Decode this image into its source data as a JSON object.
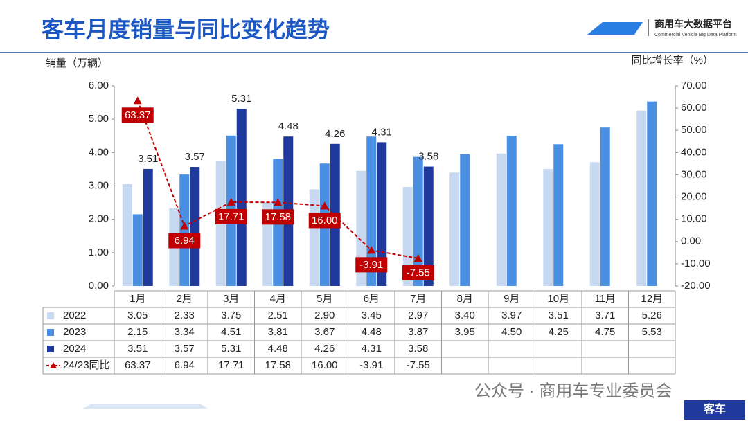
{
  "header": {
    "title": "客车月度销量与同比变化趋势",
    "logo_name": "商用车大数据平台",
    "logo_subtitle": "Commercial Vehicle Big Data Platform"
  },
  "chart_data": {
    "type": "bar",
    "y_label": "销量（万辆）",
    "y2_label": "同比增长率（%）",
    "categories": [
      "1月",
      "2月",
      "3月",
      "4月",
      "5月",
      "6月",
      "7月",
      "8月",
      "9月",
      "10月",
      "11月",
      "12月"
    ],
    "ylim": [
      0,
      6
    ],
    "yticks": [
      {
        "value": 0,
        "label": "0.00"
      },
      {
        "value": 1,
        "label": "1.00"
      },
      {
        "value": 2,
        "label": "2.00"
      },
      {
        "value": 3,
        "label": "3.00"
      },
      {
        "value": 4,
        "label": "4.00"
      },
      {
        "value": 5,
        "label": "5.00"
      },
      {
        "value": 6,
        "label": "6.00"
      }
    ],
    "y2lim": [
      -20,
      70
    ],
    "y2ticks": [
      {
        "value": -20,
        "label": "-20.00"
      },
      {
        "value": -10,
        "label": "-10.00"
      },
      {
        "value": 0,
        "label": "0.00"
      },
      {
        "value": 10,
        "label": "10.00"
      },
      {
        "value": 20,
        "label": "20.00"
      },
      {
        "value": 30,
        "label": "30.00"
      },
      {
        "value": 40,
        "label": "40.00"
      },
      {
        "value": 50,
        "label": "50.00"
      },
      {
        "value": 60,
        "label": "60.00"
      },
      {
        "value": 70,
        "label": "70.00"
      }
    ],
    "series": [
      {
        "name": "2022",
        "type": "bar",
        "color": "#c6d9f1",
        "values": [
          3.05,
          2.33,
          3.75,
          2.51,
          2.9,
          3.45,
          2.97,
          3.4,
          3.97,
          3.51,
          3.71,
          5.26
        ],
        "value_labels": [
          "3.05",
          "2.33",
          "3.75",
          "2.51",
          "2.90",
          "3.45",
          "2.97",
          "3.40",
          "3.97",
          "3.51",
          "3.71",
          "5.26"
        ]
      },
      {
        "name": "2023",
        "type": "bar",
        "color": "#4a8fe2",
        "values": [
          2.15,
          3.34,
          4.51,
          3.81,
          3.67,
          4.48,
          3.87,
          3.95,
          4.5,
          4.25,
          4.75,
          5.53
        ],
        "value_labels": [
          "2.15",
          "3.34",
          "4.51",
          "3.81",
          "3.67",
          "4.48",
          "3.87",
          "3.95",
          "4.50",
          "4.25",
          "4.75",
          "5.53"
        ]
      },
      {
        "name": "2024",
        "type": "bar",
        "color": "#1f3a9c",
        "show_labels": true,
        "values": [
          3.51,
          3.57,
          5.31,
          4.48,
          4.26,
          4.31,
          3.58,
          null,
          null,
          null,
          null,
          null
        ],
        "value_labels": [
          "3.51",
          "3.57",
          "5.31",
          "4.48",
          "4.26",
          "4.31",
          "3.58",
          null,
          null,
          null,
          null,
          null
        ]
      },
      {
        "name": "24/23同比",
        "type": "line",
        "axis": "y2",
        "color": "#c00000",
        "values": [
          63.37,
          6.94,
          17.71,
          17.58,
          16,
          -3.91,
          -7.55,
          null,
          null,
          null,
          null,
          null
        ],
        "value_labels": [
          "63.37",
          "6.94",
          "17.71",
          "17.58",
          "16.00",
          "-3.91",
          "-7.55",
          null,
          null,
          null,
          null,
          null
        ]
      }
    ]
  },
  "footer": {
    "source": "公众号 · 商用车专业委员会",
    "badge": "客车"
  }
}
